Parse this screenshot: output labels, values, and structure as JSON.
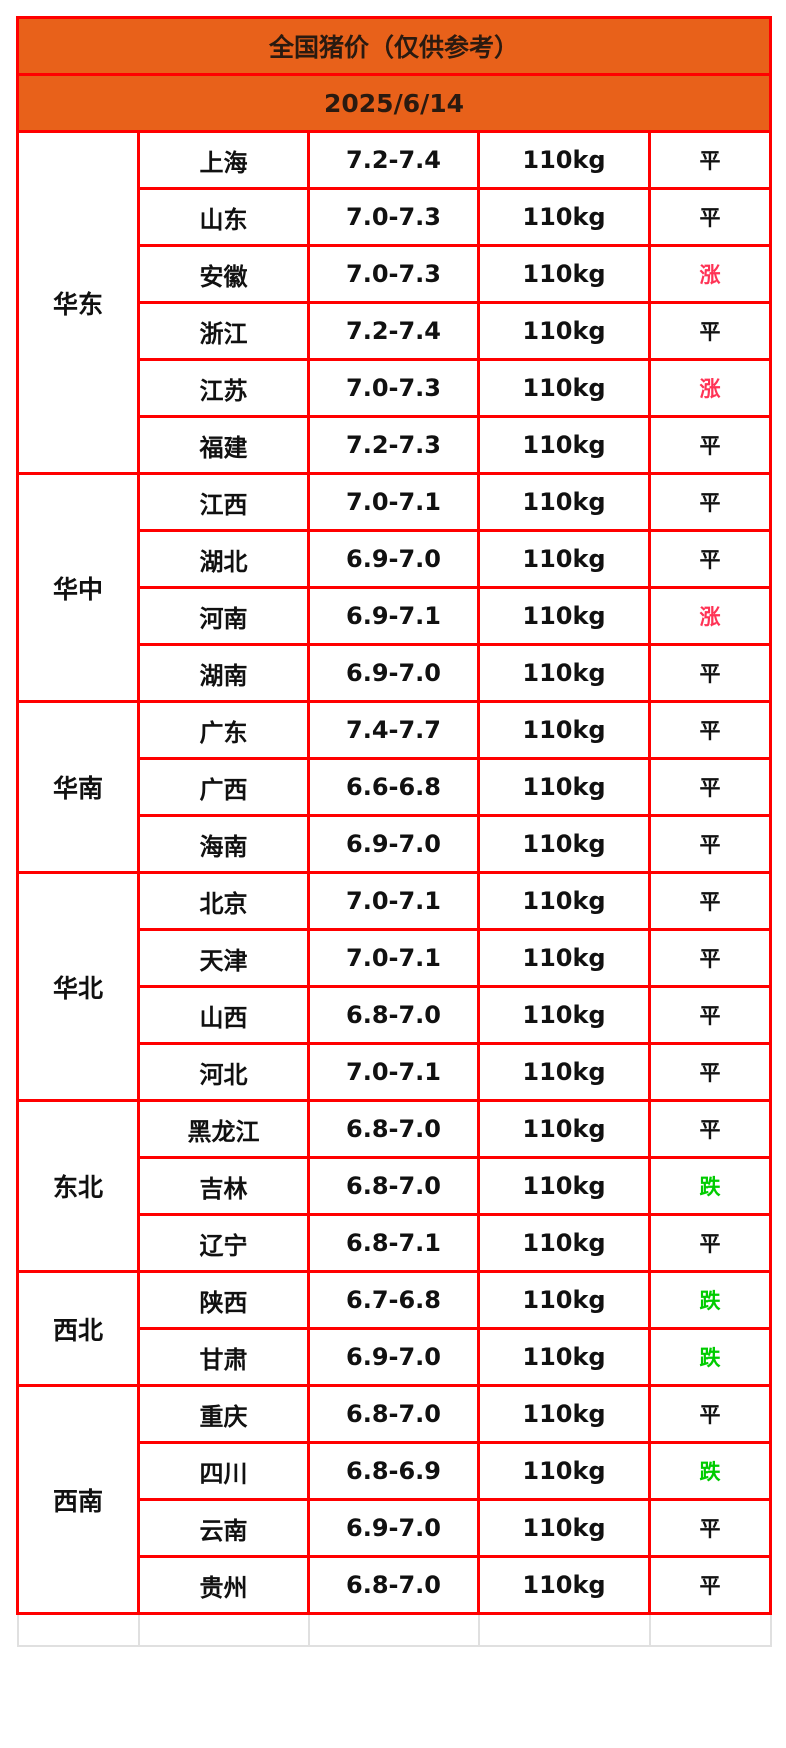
{
  "title": "全国猪价（仅供参考）",
  "date": "2025/6/14",
  "colors": {
    "header_bg": "#e8611a",
    "border": "#ff0000",
    "up": "#ff3355",
    "down": "#00cc00"
  },
  "regions": [
    {
      "name": "华东",
      "rows": [
        {
          "province": "上海",
          "price": "7.2-7.4",
          "weight": "110kg",
          "trend": "平"
        },
        {
          "province": "山东",
          "price": "7.0-7.3",
          "weight": "110kg",
          "trend": "平"
        },
        {
          "province": "安徽",
          "price": "7.0-7.3",
          "weight": "110kg",
          "trend": "涨"
        },
        {
          "province": "浙江",
          "price": "7.2-7.4",
          "weight": "110kg",
          "trend": "平"
        },
        {
          "province": "江苏",
          "price": "7.0-7.3",
          "weight": "110kg",
          "trend": "涨"
        },
        {
          "province": "福建",
          "price": "7.2-7.3",
          "weight": "110kg",
          "trend": "平"
        }
      ]
    },
    {
      "name": "华中",
      "rows": [
        {
          "province": "江西",
          "price": "7.0-7.1",
          "weight": "110kg",
          "trend": "平"
        },
        {
          "province": "湖北",
          "price": "6.9-7.0",
          "weight": "110kg",
          "trend": "平"
        },
        {
          "province": "河南",
          "price": "6.9-7.1",
          "weight": "110kg",
          "trend": "涨"
        },
        {
          "province": "湖南",
          "price": "6.9-7.0",
          "weight": "110kg",
          "trend": "平"
        }
      ]
    },
    {
      "name": "华南",
      "rows": [
        {
          "province": "广东",
          "price": "7.4-7.7",
          "weight": "110kg",
          "trend": "平"
        },
        {
          "province": "广西",
          "price": "6.6-6.8",
          "weight": "110kg",
          "trend": "平"
        },
        {
          "province": "海南",
          "price": "6.9-7.0",
          "weight": "110kg",
          "trend": "平"
        }
      ]
    },
    {
      "name": "华北",
      "rows": [
        {
          "province": "北京",
          "price": "7.0-7.1",
          "weight": "110kg",
          "trend": "平"
        },
        {
          "province": "天津",
          "price": "7.0-7.1",
          "weight": "110kg",
          "trend": "平"
        },
        {
          "province": "山西",
          "price": "6.8-7.0",
          "weight": "110kg",
          "trend": "平"
        },
        {
          "province": "河北",
          "price": "7.0-7.1",
          "weight": "110kg",
          "trend": "平"
        }
      ]
    },
    {
      "name": "东北",
      "rows": [
        {
          "province": "黑龙江",
          "price": "6.8-7.0",
          "weight": "110kg",
          "trend": "平"
        },
        {
          "province": "吉林",
          "price": "6.8-7.0",
          "weight": "110kg",
          "trend": "跌"
        },
        {
          "province": "辽宁",
          "price": "6.8-7.1",
          "weight": "110kg",
          "trend": "平"
        }
      ]
    },
    {
      "name": "西北",
      "rows": [
        {
          "province": "陕西",
          "price": "6.7-6.8",
          "weight": "110kg",
          "trend": "跌"
        },
        {
          "province": "甘肃",
          "price": "6.9-7.0",
          "weight": "110kg",
          "trend": "跌"
        }
      ]
    },
    {
      "name": "西南",
      "rows": [
        {
          "province": "重庆",
          "price": "6.8-7.0",
          "weight": "110kg",
          "trend": "平"
        },
        {
          "province": "四川",
          "price": "6.8-6.9",
          "weight": "110kg",
          "trend": "跌"
        },
        {
          "province": "云南",
          "price": "6.9-7.0",
          "weight": "110kg",
          "trend": "平"
        },
        {
          "province": "贵州",
          "price": "6.8-7.0",
          "weight": "110kg",
          "trend": "平"
        }
      ]
    }
  ]
}
